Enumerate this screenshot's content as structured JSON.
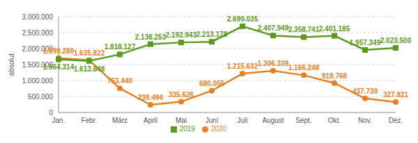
{
  "chart_data": {
    "type": "line",
    "y_label": "absolut",
    "categories": [
      "Jan.",
      "Febr.",
      "März",
      "April",
      "Mai",
      "Juni",
      "Juli",
      "August",
      "Sept.",
      "Okt.",
      "Nov.",
      "Dez."
    ],
    "series": [
      {
        "name": "2020",
        "color": "#e8801f",
        "marker": "circle",
        "values": [
          1699280,
          1635822,
          753440,
          239494,
          335626,
          680055,
          1215632,
          1306339,
          1166248,
          919768,
          437739,
          327821
        ],
        "value_labels": [
          "1.699.280",
          "1.635.822",
          "753.440",
          "239.494",
          "335.626",
          "680.055",
          "1.215.632",
          "1.306.339",
          "1.166.248",
          "919.768",
          "437.739",
          "327.821"
        ]
      },
      {
        "name": "2019",
        "color": "#5a9a1e",
        "marker": "square",
        "values": [
          1664314,
          1613848,
          1818127,
          2138253,
          2192943,
          2213178,
          2699035,
          2407949,
          2358741,
          2401185,
          1957349,
          2023500
        ],
        "value_labels": [
          "1.664.314",
          "1.613.848",
          "1.818.127",
          "2.138.253",
          "2.192.943",
          "2.213.178",
          "2.699.035",
          "2.407.949",
          "2.358.741",
          "2.401.185",
          "1.957.349",
          "2.023.500"
        ]
      }
    ],
    "ylim": [
      0,
      3000000
    ],
    "yticks": [
      0,
      {
        "value": 500000,
        "label": "500.000"
      },
      {
        "value": 1000000,
        "label": "1.000.000"
      },
      {
        "value": 1500000,
        "label": "1.500.000"
      },
      {
        "value": 2000000,
        "label": "2.000.000"
      },
      {
        "value": 2500000,
        "label": "2.500.000"
      },
      {
        "value": 3000000,
        "label": "3.000.000"
      }
    ],
    "grid": true,
    "legend": "bottom",
    "data_labels": true
  }
}
